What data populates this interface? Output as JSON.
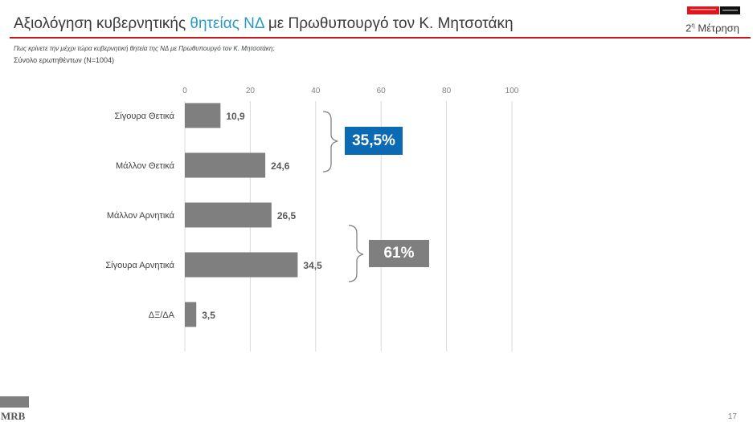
{
  "header": {
    "title_before": "Αξιολόγηση κυβερνητικής",
    "title_accent": "θητείας ΝΔ",
    "title_after": "με Πρωθυπουργό τον Κ. Μητσοτάκη",
    "measurement_prefix": "2",
    "measurement_sup": "η",
    "measurement_suffix": " Μέτρηση",
    "accent_color": "#2a9bc4",
    "rule_color": "#c4161c"
  },
  "question": "Πως κρίνετε την μέχρι τώρα κυβερνητική θητεία της ΝΔ με Πρωθυπουργό τον Κ. Μητσοτάκη;",
  "sample": "Σύνολο ερωτηθέντων (N=1004)",
  "badges": {
    "positive": "35,5%",
    "negative": "61%",
    "positive_color": "#0a6ab3",
    "negative_color": "#7f7f7f"
  },
  "footer": {
    "logo_text": "MRB",
    "page_number": "17"
  },
  "chart_data": {
    "type": "bar",
    "orientation": "horizontal",
    "categories": [
      "Σίγουρα Θετικά",
      "Μάλλον Θετικά",
      "Μάλλον Αρνητικά",
      "Σίγουρα Αρνητικά",
      "ΔΞ/ΔΑ"
    ],
    "values": [
      10.9,
      24.6,
      26.5,
      34.5,
      3.5
    ],
    "value_labels": [
      "10,9",
      "24,6",
      "26,5",
      "34,5",
      "3,5"
    ],
    "xlim": [
      0,
      100
    ],
    "ticks": [
      "0",
      "20",
      "40",
      "60",
      "80",
      "100"
    ],
    "grid": true,
    "bar_color": "#7f7f7f",
    "groups": [
      {
        "label": "35,5%",
        "categories": [
          "Σίγουρα Θετικά",
          "Μάλλον Θετικά"
        ]
      },
      {
        "label": "61%",
        "categories": [
          "Μάλλον Αρνητικά",
          "Σίγουρα Αρνητικά"
        ]
      }
    ]
  }
}
